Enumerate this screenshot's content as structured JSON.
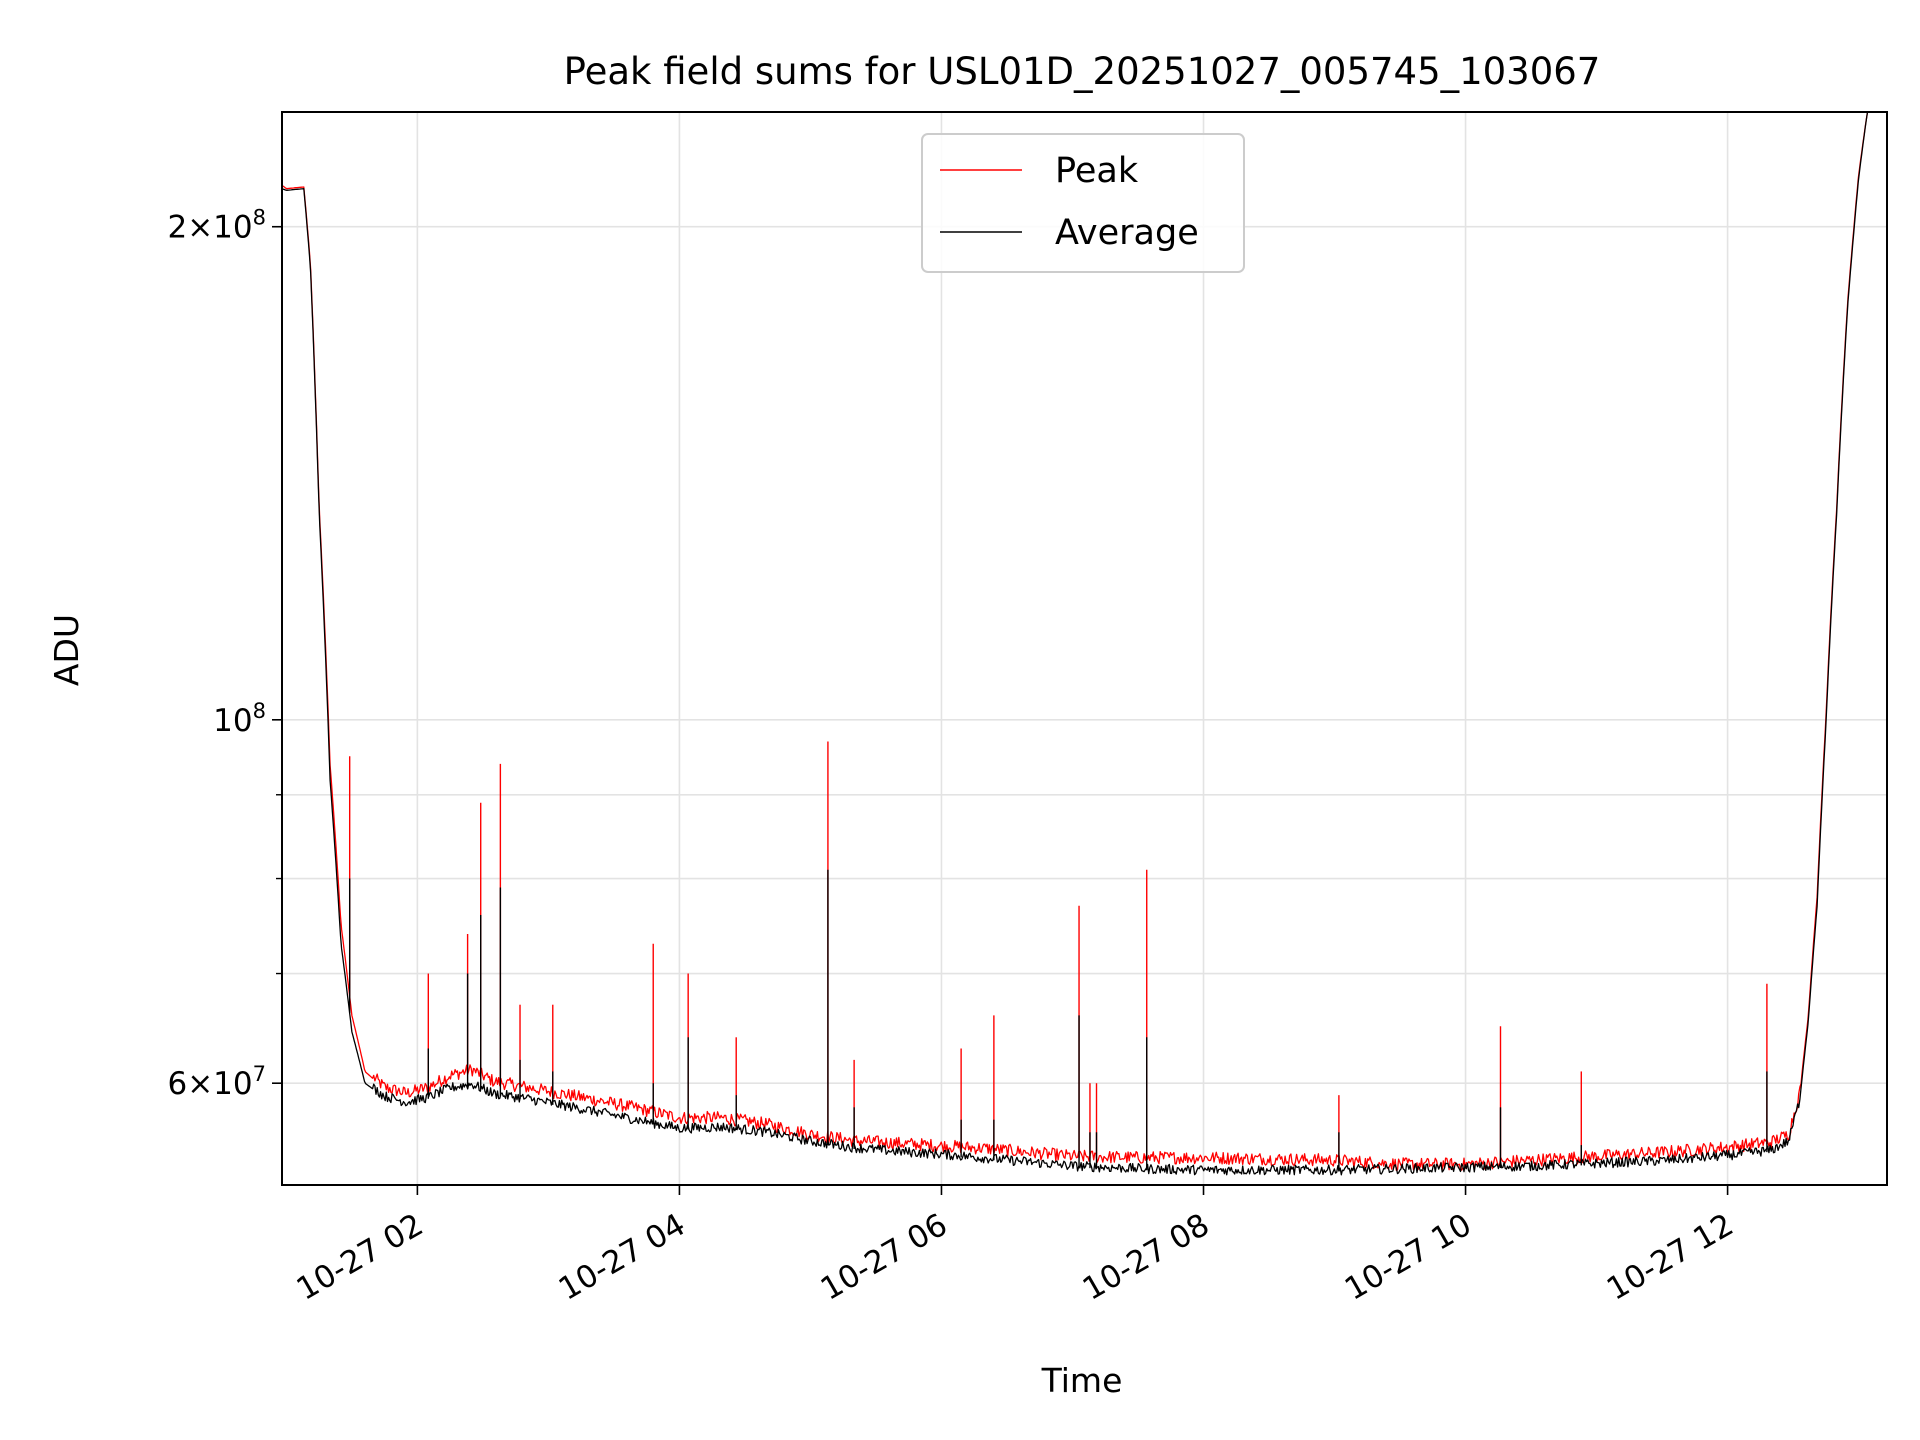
{
  "chart_data": {
    "type": "line",
    "title": "Peak field sums for USL01D_20251027_005745_103067",
    "xlabel": "Time",
    "ylabel": "ADU",
    "y_scale": "log",
    "ylim": [
      52000000,
      235000000
    ],
    "xlim": [
      "2025-10-27T00:58",
      "2025-10-27T13:13"
    ],
    "grid": true,
    "legend_position": "upper center",
    "x_ticks": [
      {
        "t": "2025-10-27T02:00",
        "label": "10-27 02"
      },
      {
        "t": "2025-10-27T04:00",
        "label": "10-27 04"
      },
      {
        "t": "2025-10-27T06:00",
        "label": "10-27 06"
      },
      {
        "t": "2025-10-27T08:00",
        "label": "10-27 08"
      },
      {
        "t": "2025-10-27T10:00",
        "label": "10-27 10"
      },
      {
        "t": "2025-10-27T12:00",
        "label": "10-27 12"
      }
    ],
    "y_ticks_major": [
      {
        "v": 60000000,
        "base": "6",
        "exp": "7"
      },
      {
        "v": 100000000,
        "base": "",
        "exp": "8"
      },
      {
        "v": 200000000,
        "base": "2",
        "exp": "8"
      }
    ],
    "y_ticks_minor": [
      70000000,
      80000000,
      90000000
    ],
    "series": [
      {
        "name": "Peak",
        "color": "#ff0000",
        "points": [
          [
            "2025-10-27T00:58",
            212000000
          ],
          [
            "2025-10-27T01:00",
            211000000
          ],
          [
            "2025-10-27T01:08",
            211500000
          ],
          [
            "2025-10-27T01:11",
            190000000
          ],
          [
            "2025-10-27T01:15",
            135000000
          ],
          [
            "2025-10-27T01:20",
            94000000
          ],
          [
            "2025-10-27T01:25",
            75000000
          ],
          [
            "2025-10-27T01:30",
            66000000
          ],
          [
            "2025-10-27T01:36",
            61000000
          ],
          [
            "2025-10-27T01:45",
            59500000
          ],
          [
            "2025-10-27T01:55",
            59000000
          ],
          [
            "2025-10-27T02:05",
            59500000
          ],
          [
            "2025-10-27T02:15",
            60500000
          ],
          [
            "2025-10-27T02:25",
            61000000
          ],
          [
            "2025-10-27T02:35",
            60000000
          ],
          [
            "2025-10-27T02:50",
            59500000
          ],
          [
            "2025-10-27T03:05",
            59000000
          ],
          [
            "2025-10-27T03:20",
            58500000
          ],
          [
            "2025-10-27T03:40",
            57800000
          ],
          [
            "2025-10-27T04:00",
            57000000
          ],
          [
            "2025-10-27T04:20",
            57000000
          ],
          [
            "2025-10-27T04:40",
            56500000
          ],
          [
            "2025-10-27T05:00",
            55700000
          ],
          [
            "2025-10-27T05:20",
            55200000
          ],
          [
            "2025-10-27T05:40",
            55000000
          ],
          [
            "2025-10-27T06:00",
            54800000
          ],
          [
            "2025-10-27T06:20",
            54600000
          ],
          [
            "2025-10-27T06:40",
            54300000
          ],
          [
            "2025-10-27T07:00",
            54000000
          ],
          [
            "2025-10-27T07:30",
            53900000
          ],
          [
            "2025-10-27T08:00",
            53900000
          ],
          [
            "2025-10-27T08:30",
            53800000
          ],
          [
            "2025-10-27T09:00",
            53700000
          ],
          [
            "2025-10-27T09:30",
            53400000
          ],
          [
            "2025-10-27T10:00",
            53400000
          ],
          [
            "2025-10-27T10:30",
            53700000
          ],
          [
            "2025-10-27T11:00",
            54000000
          ],
          [
            "2025-10-27T11:30",
            54300000
          ],
          [
            "2025-10-27T12:00",
            54700000
          ],
          [
            "2025-10-27T12:20",
            55100000
          ],
          [
            "2025-10-27T12:28",
            55700000
          ],
          [
            "2025-10-27T12:33",
            59000000
          ],
          [
            "2025-10-27T12:37",
            66000000
          ],
          [
            "2025-10-27T12:41",
            78000000
          ],
          [
            "2025-10-27T12:45",
            100000000
          ],
          [
            "2025-10-27T12:50",
            135000000
          ],
          [
            "2025-10-27T12:55",
            180000000
          ],
          [
            "2025-10-27T13:00",
            215000000
          ],
          [
            "2025-10-27T13:04",
            235000000
          ],
          [
            "2025-10-27T13:13",
            235000000
          ]
        ]
      },
      {
        "name": "Average",
        "color": "#000000",
        "points": [
          [
            "2025-10-27T00:58",
            211000000
          ],
          [
            "2025-10-27T01:00",
            210500000
          ],
          [
            "2025-10-27T01:08",
            211000000
          ],
          [
            "2025-10-27T01:11",
            189000000
          ],
          [
            "2025-10-27T01:15",
            134000000
          ],
          [
            "2025-10-27T01:20",
            92000000
          ],
          [
            "2025-10-27T01:25",
            73000000
          ],
          [
            "2025-10-27T01:30",
            64500000
          ],
          [
            "2025-10-27T01:36",
            60000000
          ],
          [
            "2025-10-27T01:45",
            58800000
          ],
          [
            "2025-10-27T01:55",
            58300000
          ],
          [
            "2025-10-27T02:05",
            58700000
          ],
          [
            "2025-10-27T02:15",
            59500000
          ],
          [
            "2025-10-27T02:25",
            59800000
          ],
          [
            "2025-10-27T02:35",
            59000000
          ],
          [
            "2025-10-27T02:50",
            58600000
          ],
          [
            "2025-10-27T03:05",
            58100000
          ],
          [
            "2025-10-27T03:20",
            57600000
          ],
          [
            "2025-10-27T03:40",
            56900000
          ],
          [
            "2025-10-27T04:00",
            56200000
          ],
          [
            "2025-10-27T04:20",
            56300000
          ],
          [
            "2025-10-27T04:40",
            55900000
          ],
          [
            "2025-10-27T05:00",
            55200000
          ],
          [
            "2025-10-27T05:20",
            54700000
          ],
          [
            "2025-10-27T05:40",
            54400000
          ],
          [
            "2025-10-27T06:00",
            54200000
          ],
          [
            "2025-10-27T06:20",
            53900000
          ],
          [
            "2025-10-27T06:40",
            53600000
          ],
          [
            "2025-10-27T07:00",
            53300000
          ],
          [
            "2025-10-27T07:30",
            53100000
          ],
          [
            "2025-10-27T08:00",
            53000000
          ],
          [
            "2025-10-27T08:30",
            53000000
          ],
          [
            "2025-10-27T09:00",
            53000000
          ],
          [
            "2025-10-27T09:30",
            53100000
          ],
          [
            "2025-10-27T10:00",
            53200000
          ],
          [
            "2025-10-27T10:30",
            53300000
          ],
          [
            "2025-10-27T11:00",
            53500000
          ],
          [
            "2025-10-27T11:30",
            53700000
          ],
          [
            "2025-10-27T12:00",
            54100000
          ],
          [
            "2025-10-27T12:20",
            54500000
          ],
          [
            "2025-10-27T12:28",
            55200000
          ],
          [
            "2025-10-27T12:33",
            58500000
          ],
          [
            "2025-10-27T12:37",
            65500000
          ],
          [
            "2025-10-27T12:41",
            77000000
          ],
          [
            "2025-10-27T12:45",
            99000000
          ],
          [
            "2025-10-27T12:50",
            134000000
          ],
          [
            "2025-10-27T12:55",
            179000000
          ],
          [
            "2025-10-27T13:00",
            214000000
          ],
          [
            "2025-10-27T13:04",
            235000000
          ],
          [
            "2025-10-27T13:13",
            235000000
          ]
        ]
      }
    ],
    "spikes": [
      {
        "t": "2025-10-27T01:29",
        "peak": 95000000,
        "avg": 80000000
      },
      {
        "t": "2025-10-27T02:05",
        "peak": 70000000,
        "avg": 63000000
      },
      {
        "t": "2025-10-27T02:23",
        "peak": 74000000,
        "avg": 70000000
      },
      {
        "t": "2025-10-27T02:29",
        "peak": 89000000,
        "avg": 76000000
      },
      {
        "t": "2025-10-27T02:38",
        "peak": 94000000,
        "avg": 79000000
      },
      {
        "t": "2025-10-27T02:47",
        "peak": 67000000,
        "avg": 62000000
      },
      {
        "t": "2025-10-27T03:02",
        "peak": 67000000,
        "avg": 61000000
      },
      {
        "t": "2025-10-27T03:48",
        "peak": 73000000,
        "avg": 60000000
      },
      {
        "t": "2025-10-27T04:04",
        "peak": 70000000,
        "avg": 64000000
      },
      {
        "t": "2025-10-27T04:26",
        "peak": 64000000,
        "avg": 59000000
      },
      {
        "t": "2025-10-27T05:08",
        "peak": 97000000,
        "avg": 81000000
      },
      {
        "t": "2025-10-27T05:20",
        "peak": 62000000,
        "avg": 58000000
      },
      {
        "t": "2025-10-27T06:09",
        "peak": 63000000,
        "avg": 57000000
      },
      {
        "t": "2025-10-27T06:24",
        "peak": 66000000,
        "avg": 57000000
      },
      {
        "t": "2025-10-27T07:03",
        "peak": 77000000,
        "avg": 66000000
      },
      {
        "t": "2025-10-27T07:08",
        "peak": 60000000,
        "avg": 56000000
      },
      {
        "t": "2025-10-27T07:11",
        "peak": 60000000,
        "avg": 56000000
      },
      {
        "t": "2025-10-27T07:34",
        "peak": 81000000,
        "avg": 64000000
      },
      {
        "t": "2025-10-27T09:02",
        "peak": 59000000,
        "avg": 56000000
      },
      {
        "t": "2025-10-27T10:16",
        "peak": 65000000,
        "avg": 58000000
      },
      {
        "t": "2025-10-27T10:53",
        "peak": 61000000,
        "avg": 55000000
      },
      {
        "t": "2025-10-27T12:18",
        "peak": 69000000,
        "avg": 61000000
      }
    ]
  }
}
